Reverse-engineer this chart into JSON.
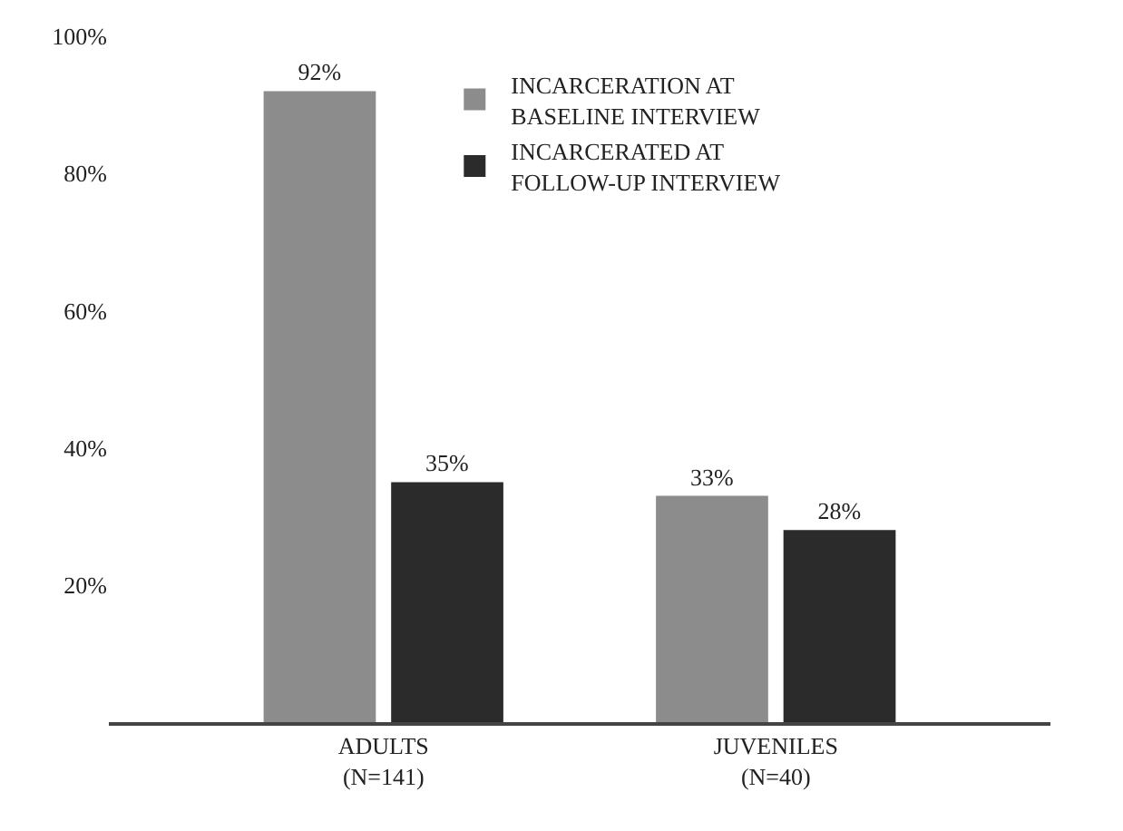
{
  "chart_data": {
    "type": "bar",
    "categories": [
      "ADULTS\n(N=141)",
      "JUVENILES\n(N=40)"
    ],
    "series": [
      {
        "name": "INCARCERATION AT\nBASELINE INTERVIEW",
        "color": "#8c8c8c",
        "values": [
          92,
          33
        ]
      },
      {
        "name": "INCARCERATED AT\nFOLLOW-UP INTERVIEW",
        "color": "#2b2b2b",
        "values": [
          35,
          28
        ]
      }
    ],
    "ylim": [
      0,
      100
    ],
    "yticks": [
      {
        "value": 20,
        "label": "20%"
      },
      {
        "value": 40,
        "label": "40%"
      },
      {
        "value": 60,
        "label": "60%"
      },
      {
        "value": 80,
        "label": "80%"
      },
      {
        "value": 100,
        "label": "100%"
      }
    ],
    "value_labels": [
      [
        "92%",
        "33%"
      ],
      [
        "35%",
        "28%"
      ]
    ],
    "legend": "top"
  }
}
